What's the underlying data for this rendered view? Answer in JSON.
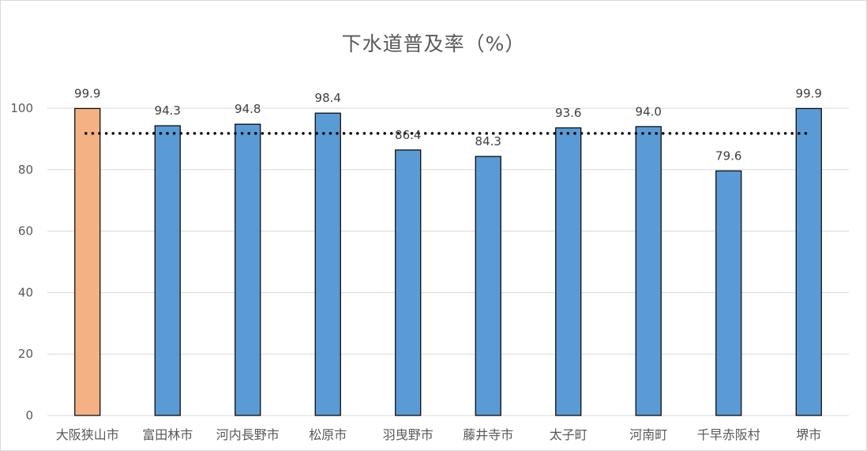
{
  "chart_data": {
    "type": "bar",
    "title": "下水道普及率（%）",
    "categories": [
      "大阪狭山市",
      "富田林市",
      "河内長野市",
      "松原市",
      "羽曳野市",
      "藤井寺市",
      "太子町",
      "河南町",
      "千早赤阪村",
      "堺市"
    ],
    "values": [
      99.9,
      94.3,
      94.8,
      98.4,
      86.4,
      84.3,
      93.6,
      94.0,
      79.6,
      99.9
    ],
    "data_labels": [
      "99.9",
      "94.3",
      "94.8",
      "98.4",
      "86.4",
      "84.3",
      "93.6",
      "94.0",
      "79.6",
      "99.9"
    ],
    "ylim": [
      0,
      100
    ],
    "yticks": [
      "0",
      "20",
      "40",
      "60",
      "80",
      "100"
    ],
    "reference_line": 91.8,
    "colors": {
      "highlight": "#f4b183",
      "default": "#5b9bd5",
      "bar_outline": "#000000",
      "grid": "#d9d9d9",
      "reference_line": "#000000"
    },
    "highlight_index": 0,
    "grid": true,
    "legend": "none"
  }
}
